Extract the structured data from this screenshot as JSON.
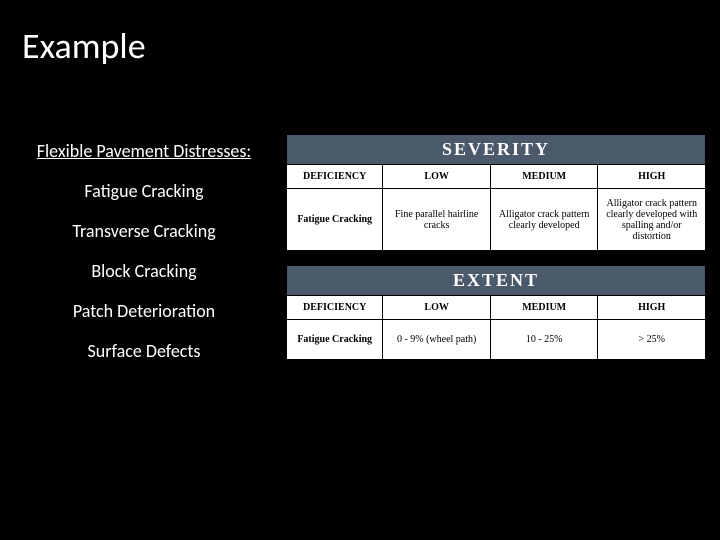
{
  "title": "Example",
  "left": {
    "heading": "Flexible Pavement Distresses:",
    "items": [
      "Fatigue Cracking",
      "Transverse Cracking",
      "Block Cracking",
      "Patch Deterioration",
      "Surface Defects"
    ]
  },
  "severity": {
    "banner": "SEVERITY",
    "headers": [
      "DEFICIENCY",
      "LOW",
      "MEDIUM",
      "HIGH"
    ],
    "row": {
      "deficiency": "Fatigue Cracking",
      "low": "Fine parallel hairline cracks",
      "medium": "Alligator crack pattern clearly developed",
      "high": "Alligator crack pattern clearly developed with spalling and/or distortion"
    }
  },
  "extent": {
    "banner": "EXTENT",
    "headers": [
      "DEFICIENCY",
      "LOW",
      "MEDIUM",
      "HIGH"
    ],
    "row": {
      "deficiency": "Fatigue Cracking",
      "low": "0 - 9% (wheel path)",
      "medium": "10 - 25%",
      "high": "> 25%"
    }
  },
  "colors": {
    "background": "#000000",
    "text": "#ffffff",
    "banner_bg": "#4a5a6a",
    "table_bg": "#ffffff",
    "table_text": "#000000",
    "border": "#000000"
  }
}
